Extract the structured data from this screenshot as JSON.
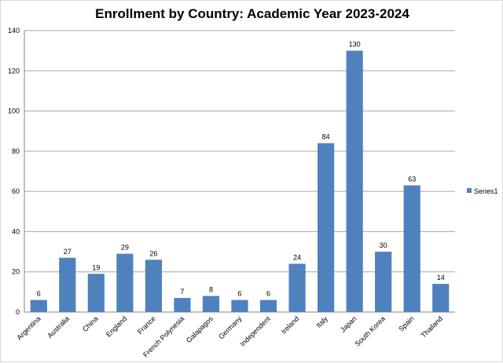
{
  "chart_data": {
    "type": "bar",
    "title": "Enrollment by Country: Academic Year 2023-2024",
    "categories": [
      "Argentina",
      "Australia",
      "China",
      "England",
      "France",
      "French Polynesia",
      "Galapagos",
      "Germany",
      "Independent",
      "Ireland",
      "Italy",
      "Japan",
      "South Korea",
      "Spain",
      "Thailand"
    ],
    "series": [
      {
        "name": "Series1",
        "values": [
          6,
          27,
          19,
          29,
          26,
          7,
          8,
          6,
          6,
          24,
          84,
          130,
          30,
          63,
          14
        ]
      }
    ],
    "xlabel": "",
    "ylabel": "",
    "ylim": [
      0,
      140
    ],
    "yticks": [
      0,
      20,
      40,
      60,
      80,
      100,
      120,
      140
    ],
    "grid": true,
    "legend_position": "right",
    "data_labels": true,
    "colors": {
      "bar": "#4f81bd",
      "grid": "#a6a6a6",
      "axis": "#868686"
    }
  }
}
